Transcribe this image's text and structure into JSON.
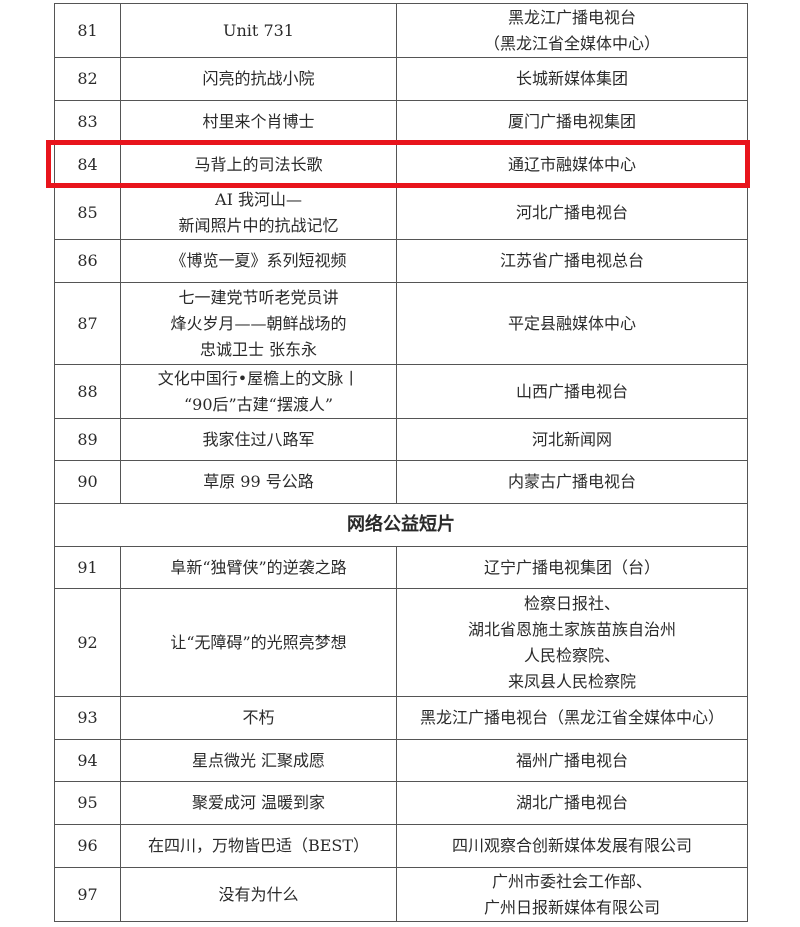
{
  "rows1": [
    {
      "no": "81",
      "title": [
        "Unit 731"
      ],
      "org": [
        "黑龙江广播电视台",
        "（黑龙江省全媒体中心）"
      ],
      "h": 54
    },
    {
      "no": "82",
      "title": [
        "闪亮的抗战小院"
      ],
      "org": [
        "长城新媒体集团"
      ],
      "h": 43
    },
    {
      "no": "83",
      "title": [
        "村里来个肖博士"
      ],
      "org": [
        "厦门广播电视集团"
      ],
      "h": 43
    },
    {
      "no": "84",
      "title": [
        "马背上的司法长歌"
      ],
      "org": [
        "通辽市融媒体中心"
      ],
      "h": 43,
      "highlighted": true
    },
    {
      "no": "85",
      "title": [
        "AI 我河山—",
        "新闻照片中的抗战记忆"
      ],
      "org": [
        "河北广播电视台"
      ],
      "h": 53
    },
    {
      "no": "86",
      "title": [
        "《博览一夏》系列短视频"
      ],
      "org": [
        "江苏省广播电视总台"
      ],
      "h": 43
    },
    {
      "no": "87",
      "title": [
        "七一建党节听老党员讲",
        "烽火岁月——朝鲜战场的",
        "忠诚卫士 张东永"
      ],
      "org": [
        "平定县融媒体中心"
      ],
      "h": 82
    },
    {
      "no": "88",
      "title": [
        "文化中国行•屋檐上的文脉丨",
        "“90后”古建“摆渡人”"
      ],
      "org": [
        "山西广播电视台"
      ],
      "h": 54
    },
    {
      "no": "89",
      "title": [
        "我家住过八路军"
      ],
      "org": [
        "河北新闻网"
      ],
      "h": 42
    },
    {
      "no": "90",
      "title": [
        "草原 99 号公路"
      ],
      "org": [
        "内蒙古广播电视台"
      ],
      "h": 43
    }
  ],
  "section": "网络公益短片",
  "rows2": [
    {
      "no": "91",
      "title": [
        "阜新“独臂侠”的逆袭之路"
      ],
      "org": [
        "辽宁广播电视集团（台）"
      ],
      "h": 42
    },
    {
      "no": "92",
      "title": [
        "让“无障碍”的光照亮梦想"
      ],
      "org": [
        "检察日报社、",
        "湖北省恩施土家族苗族自治州",
        "人民检察院、",
        "来凤县人民检察院"
      ],
      "h": 108
    },
    {
      "no": "93",
      "title": [
        "不朽"
      ],
      "org": [
        "黑龙江广播电视台（黑龙江省全媒体中心）"
      ],
      "h": 43
    },
    {
      "no": "94",
      "title": [
        "星点微光 汇聚成愿"
      ],
      "org": [
        "福州广播电视台"
      ],
      "h": 42
    },
    {
      "no": "95",
      "title": [
        "聚爱成河 温暖到家"
      ],
      "org": [
        "湖北广播电视台"
      ],
      "h": 43
    },
    {
      "no": "96",
      "title": [
        "在四川，万物皆巴适（BEST）"
      ],
      "org": [
        "四川观察合创新媒体发展有限公司"
      ],
      "h": 43
    },
    {
      "no": "97",
      "title": [
        "没有为什么"
      ],
      "org": [
        "广州市委社会工作部、",
        "广州日报新媒体有限公司"
      ],
      "h": 54
    }
  ],
  "highlight_color": "#e8141c"
}
